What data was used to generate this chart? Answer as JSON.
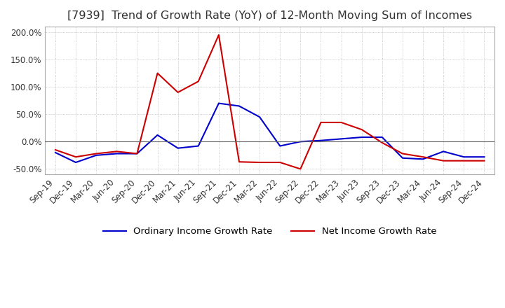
{
  "title": "[7939]  Trend of Growth Rate (YoY) of 12-Month Moving Sum of Incomes",
  "title_fontsize": 11.5,
  "background_color": "#ffffff",
  "grid_color": "#aaaaaa",
  "ordinary_color": "#0000cc",
  "net_color": "#cc0000",
  "legend_labels": [
    "Ordinary Income Growth Rate",
    "Net Income Growth Rate"
  ],
  "x_labels": [
    "Sep-19",
    "Dec-19",
    "Mar-20",
    "Jun-20",
    "Sep-20",
    "Dec-20",
    "Mar-21",
    "Jun-21",
    "Sep-21",
    "Dec-21",
    "Mar-22",
    "Jun-22",
    "Sep-22",
    "Dec-22",
    "Mar-23",
    "Jun-23",
    "Sep-23",
    "Dec-23",
    "Mar-24",
    "Jun-24",
    "Sep-24",
    "Dec-24"
  ],
  "ordinary_income": [
    -0.2,
    -0.38,
    -0.25,
    -0.22,
    -0.22,
    0.12,
    -0.12,
    -0.08,
    0.7,
    0.65,
    0.45,
    -0.08,
    0.0,
    0.02,
    0.05,
    0.08,
    0.08,
    -0.3,
    -0.32,
    -0.18,
    -0.28,
    -0.28
  ],
  "net_income": [
    -0.15,
    -0.28,
    -0.22,
    -0.18,
    -0.22,
    1.25,
    0.9,
    1.1,
    1.95,
    -0.37,
    -0.38,
    -0.38,
    -0.5,
    0.35,
    0.35,
    0.22,
    -0.02,
    -0.22,
    -0.28,
    -0.35,
    -0.35,
    -0.35
  ],
  "ylim": [
    -0.6,
    2.1
  ],
  "yticks": [
    -0.5,
    0.0,
    0.5,
    1.0,
    1.5,
    2.0
  ]
}
